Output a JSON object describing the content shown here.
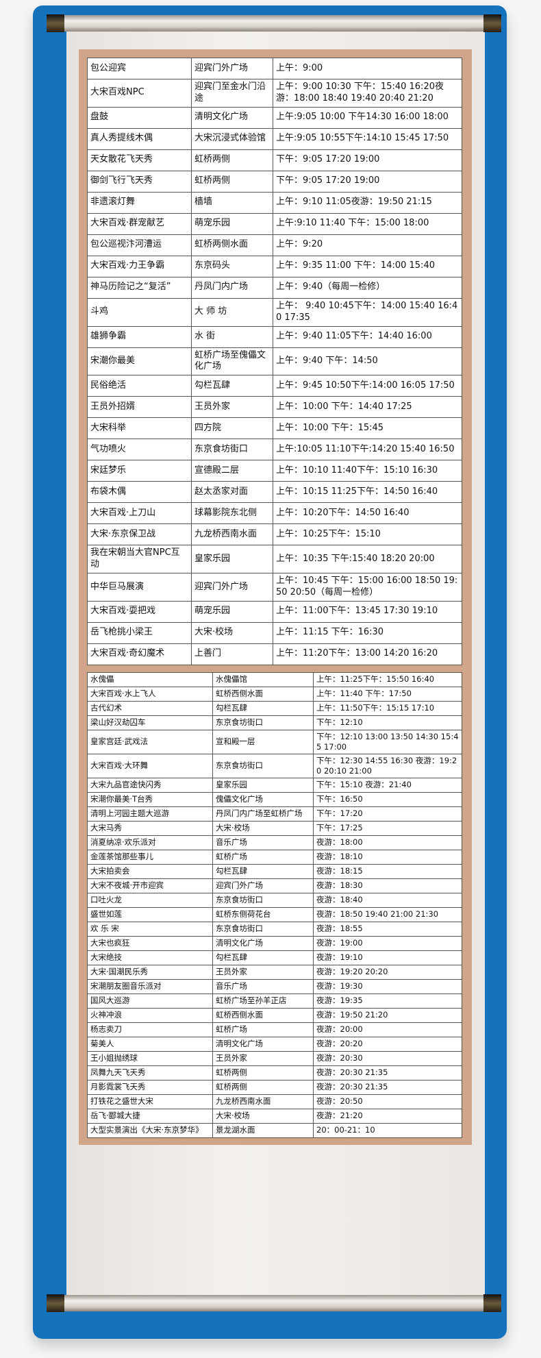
{
  "table1": [
    [
      "包公迎宾",
      "迎宾门外广场",
      "上午：9:00"
    ],
    [
      "大宋百戏NPC",
      "迎宾门至金水门沿途",
      "上午：9:00 10:30 下午：15:40 16:20夜游：18:00 18:40 19:40 20:40 21:20"
    ],
    [
      "盘鼓",
      "清明文化广场",
      "上午:9:05 10:00 下午14:30  16:00  18:00"
    ],
    [
      "真人秀提线木偶",
      "大宋沉浸式体验馆",
      "上午:9:05 10:55下午:14:10 15:45 17:50"
    ],
    [
      "天女散花飞天秀",
      "虹桥两侧",
      "下午：9:05 17:20 19:00"
    ],
    [
      "御剑飞行飞天秀",
      "虹桥两侧",
      "下午：9:05 17:20 19:00"
    ],
    [
      "非遗滚灯舞",
      "樯墙",
      "上午：9:10 11:05夜游：19:50 21:15"
    ],
    [
      "大宋百戏·群宠献艺",
      "萌宠乐园",
      "上午:9:10 11:40 下午：15:00 18:00"
    ],
    [
      "包公巡视汴河漕运",
      "虹桥两侧水面",
      "上午：9:20"
    ],
    [
      "大宋百戏·力王争霸",
      "东京码头",
      "上午：9:35 11:00 下午：14:00 15:40"
    ],
    [
      "神马历险记之“复活”",
      "丹凤门内广场",
      "上午：9:40（每周一检修）"
    ],
    [
      "斗鸡",
      "大 师 坊",
      "上午： 9:40 10:45下午：14:00 15:40 16:40 17:35"
    ],
    [
      "雄狮争霸",
      "水 街",
      "上午：9:40 11:05下午：14:40 16:00"
    ],
    [
      "宋潮你最美",
      "虹桥广场至傀儡文化广场",
      "上午：9:40 下午：14:50"
    ],
    [
      "民俗绝活",
      "勾栏瓦肆",
      "上午：9:45 10:50下午:14:00 16:05 17:50"
    ],
    [
      "王员外招婿",
      "王员外家",
      "上午：10:00 下午：14:40 17:25"
    ],
    [
      "大宋科举",
      "四方院",
      "上午：10:00 下午：15:45"
    ],
    [
      "气功喷火",
      "东京食坊街口",
      "上午:10:05 11:10下午:14:20 15:40 16:50"
    ],
    [
      "宋廷梦乐",
      "宣德殿二层",
      "上午：10:10 11:40下午：15:10 16:30"
    ],
    [
      "布袋木偶",
      "赵太丞家对面",
      "上午：10:15 11:25下午：14:50 16:40"
    ],
    [
      "大宋百戏·上刀山",
      "球幕影院东北侧",
      "上午：10:20下午：14:50 16:40"
    ],
    [
      "大宋·东京保卫战",
      "九龙桥西南水面",
      "上午：10:25下午：15:10"
    ],
    [
      "我在宋朝当大官NPC互动",
      "皇家乐园",
      "上午：10:35 下午:15:40 18:20 20:00"
    ],
    [
      "中华巨马展演",
      "迎宾门外广场",
      "上午：10:45 下午：15:00 16:00 18:50 19:50 20:50（每周一检修）"
    ],
    [
      "大宋百戏·耍把戏",
      "萌宠乐园",
      "上午：11:00下午：13:45 17:30 19:10"
    ],
    [
      "岳飞枪挑小梁王",
      "大宋·校场",
      "上午：11:15 下午：16:30"
    ],
    [
      "大宋百戏·奇幻魔术",
      "上善门",
      "上午：11:20下午：13:00 14:20 16:20"
    ]
  ],
  "table2": [
    [
      "水傀儡",
      "水傀儡馆",
      "上午：11:25下午：15:50 16:40"
    ],
    [
      "大宋百戏·水上飞人",
      "虹桥西侧水面",
      "上午：11:40 下午：17:50"
    ],
    [
      "古代幻术",
      "勾栏瓦肆",
      "上午：11:50下午：15:15 17:10"
    ],
    [
      "梁山好汉劫囚车",
      "东京食坊街口",
      "下午：12:10"
    ],
    [
      "皇家宫廷·武戏法",
      "宣和殿一层",
      "下午：12:10 13:00 13:50 14:30 15:45 17:00"
    ],
    [
      "大宋百戏·大环舞",
      "东京食坊街口",
      "下午：12:30 14:55 16:30 夜游：19:20 20:10 21:00"
    ],
    [
      "大宋九品官途快闪秀",
      "皇家乐园",
      "下午：15:10 夜游：21:40"
    ],
    [
      "宋潮你最美·T台秀",
      "傀儡文化广场",
      "下午：16:50"
    ],
    [
      "清明上河园主题大巡游",
      "丹凤门内广场至虹桥广场",
      "下午：17:20"
    ],
    [
      "大宋马秀",
      "大宋·校场",
      "下午：17:25"
    ],
    [
      "消夏纳凉·欢乐派对",
      "音乐广场",
      "夜游：18:00"
    ],
    [
      "金莲茶馆那些事儿",
      "虹桥广场",
      "夜游：18:10"
    ],
    [
      "大宋拍卖会",
      "勾栏瓦肆",
      "夜游：18:15"
    ],
    [
      "大宋不夜城·开市迎宾",
      "迎宾门外广场",
      "夜游：18:30"
    ],
    [
      "口吐火龙",
      "东京食坊街口",
      "夜游：18:40"
    ],
    [
      "盛世如莲",
      "虹桥东侧荷花台",
      "夜游：18:50 19:40 21:00 21:30"
    ],
    [
      "欢 乐 宋",
      "东京食坊街口",
      "夜游：18:55"
    ],
    [
      "大宋也疯狂",
      "清明文化广场",
      "夜游：19:00"
    ],
    [
      "大宋绝技",
      "勾栏瓦肆",
      "夜游：19:10"
    ],
    [
      "大宋·国潮民乐秀",
      "王员外家",
      "夜游：19:20 20:20"
    ],
    [
      "宋潮朋友圈音乐派对",
      "音乐广场",
      "夜游：19:30"
    ],
    [
      "国风大巡游",
      "虹桥广场至孙羊正店",
      "夜游：19:35"
    ],
    [
      "火神冲浪",
      "虹桥西侧水面",
      "夜游：19:50 21:20"
    ],
    [
      "杨志卖刀",
      "虹桥广场",
      "夜游：20:00"
    ],
    [
      "菊美人",
      "清明文化广场",
      "夜游：20:20"
    ],
    [
      "王小姐抛绣球",
      "王员外家",
      "夜游：20:30"
    ],
    [
      "凤舞九天飞天秀",
      "虹桥两侧",
      "夜游：20:30 21:35"
    ],
    [
      "月影霓裳飞天秀",
      "虹桥两侧",
      "夜游：20:30 21:35"
    ],
    [
      "打铁花之盛世大宋",
      "九龙桥西南水面",
      "夜游：20:50"
    ],
    [
      "岳飞·郾城大捷",
      "大宋·校场",
      "夜游：21:20"
    ],
    [
      "大型实景演出《大宋·东京梦华》",
      "景龙湖水面",
      "20：00-21：10"
    ]
  ],
  "colors": {
    "panel": "#1573bd",
    "frame": "#d1a589",
    "paper": "#ede9e5"
  }
}
